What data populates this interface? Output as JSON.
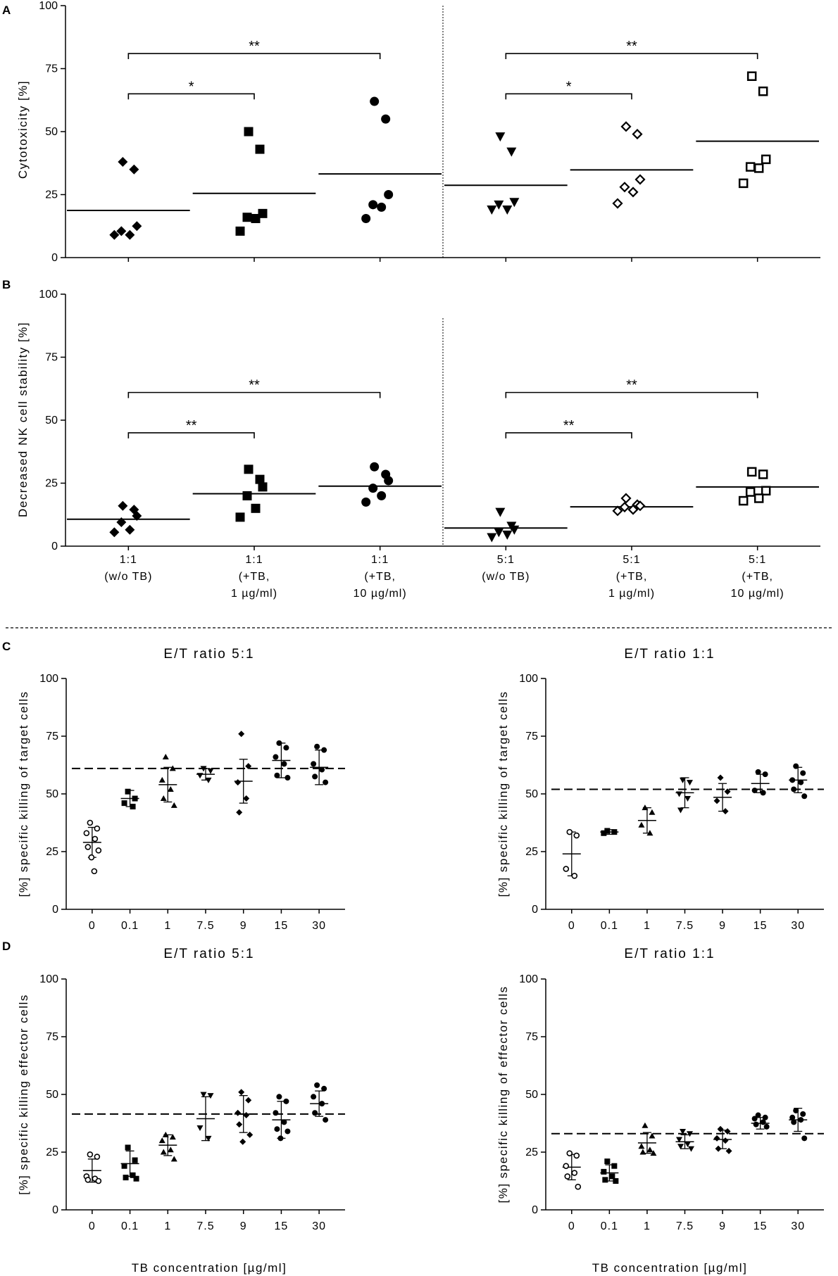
{
  "figure": {
    "separator": "dashed",
    "x_axis_title": "TB concentration [µg/ml]"
  },
  "chart_data": [
    {
      "id": "A",
      "panel_label": "A",
      "type": "scatter",
      "ylabel": "Cytotoxicity [%]",
      "ylim": [
        0,
        100
      ],
      "yticks": [
        "0",
        "25",
        "50",
        "75",
        "100"
      ],
      "show_x_labels": false,
      "divider_after_group": 3,
      "groups": [
        {
          "label": [
            "1:1",
            "(w/o TB)"
          ],
          "marker": "diamond",
          "points": [
            38,
            35,
            12.5,
            10.5,
            9,
            9
          ],
          "mean": 18.7
        },
        {
          "label": [
            "1:1",
            "(+TB,",
            "1 µg/ml)"
          ],
          "marker": "square",
          "points": [
            50,
            43,
            17.5,
            16,
            15.5,
            10.5
          ],
          "mean": 25.5
        },
        {
          "label": [
            "1:1",
            "(+TB,",
            "10 µg/ml)"
          ],
          "marker": "circle",
          "points": [
            62,
            55,
            25,
            21,
            20,
            15.5
          ],
          "mean": 33.2
        },
        {
          "label": [
            "5:1",
            "(w/o TB)"
          ],
          "marker": "triangle-down",
          "points": [
            48,
            42,
            22,
            21,
            19,
            19
          ],
          "mean": 28.7
        },
        {
          "label": [
            "5:1",
            "(+TB,",
            "1 µg/ml)"
          ],
          "marker": "diamond-open",
          "points": [
            52,
            49,
            31,
            28,
            26,
            21.5
          ],
          "mean": 34.8
        },
        {
          "label": [
            "5:1",
            "(+TB,",
            "10 µg/ml)"
          ],
          "marker": "square-open",
          "points": [
            72,
            66,
            39,
            36,
            35.5,
            29.5
          ],
          "mean": 46.2
        }
      ],
      "brackets": [
        {
          "from": 0,
          "to": 2,
          "level": 81,
          "text": "**"
        },
        {
          "from": 0,
          "to": 1,
          "level": 65,
          "text": "*"
        },
        {
          "from": 3,
          "to": 5,
          "level": 81,
          "text": "**"
        },
        {
          "from": 3,
          "to": 4,
          "level": 65,
          "text": "*"
        }
      ]
    },
    {
      "id": "B",
      "panel_label": "B",
      "type": "scatter",
      "ylabel": "Decreased NK cell stability [%]",
      "ylim": [
        0,
        100
      ],
      "yticks": [
        "0",
        "25",
        "50",
        "75",
        "100"
      ],
      "show_x_labels": true,
      "divider_after_group": 3,
      "groups": [
        {
          "label": [
            "1:1",
            "(w/o TB)"
          ],
          "marker": "diamond",
          "points": [
            16,
            14.5,
            12,
            9.5,
            6.5,
            5.5
          ],
          "mean": 10.7
        },
        {
          "label": [
            "1:1",
            "(+TB,",
            "1 µg/ml)"
          ],
          "marker": "square",
          "points": [
            30.5,
            26.5,
            23.5,
            20,
            15,
            11.5
          ],
          "mean": 20.8
        },
        {
          "label": [
            "1:1",
            "(+TB,",
            "10 µg/ml)"
          ],
          "marker": "circle",
          "points": [
            31.5,
            28.5,
            26,
            23,
            20,
            17.5
          ],
          "mean": 23.8
        },
        {
          "label": [
            "5:1",
            "(w/o TB)"
          ],
          "marker": "triangle-down",
          "points": [
            13.5,
            8,
            6.5,
            5.5,
            4.5,
            3.5
          ],
          "mean": 7.2
        },
        {
          "label": [
            "5:1",
            "(+TB,",
            "1 µg/ml)"
          ],
          "marker": "diamond-open",
          "points": [
            19,
            16.5,
            16,
            15.5,
            14.5,
            14
          ],
          "mean": 15.6
        },
        {
          "label": [
            "5:1",
            "(+TB,",
            "10 µg/ml)"
          ],
          "marker": "square-open",
          "points": [
            29.5,
            28.5,
            22,
            21.5,
            19,
            18
          ],
          "mean": 23.5
        }
      ],
      "brackets": [
        {
          "from": 0,
          "to": 2,
          "level": 61,
          "text": "**"
        },
        {
          "from": 0,
          "to": 1,
          "level": 45,
          "text": "**"
        },
        {
          "from": 3,
          "to": 5,
          "level": 61,
          "text": "**"
        },
        {
          "from": 3,
          "to": 4,
          "level": 45,
          "text": "**"
        }
      ]
    },
    {
      "id": "C1",
      "panel_label": "C",
      "type": "scatter",
      "title": "E/T ratio 5:1",
      "ylabel": "[%] specific killing of target cells",
      "ylim": [
        0,
        100
      ],
      "yticks": [
        "0",
        "25",
        "50",
        "75",
        "100"
      ],
      "reference_line": 61,
      "categories": [
        "0",
        "0.1",
        "1",
        "7.5",
        "9",
        "15",
        "30"
      ],
      "groups": [
        {
          "marker": "circle-open",
          "points": [
            37.5,
            35,
            33,
            30.5,
            27,
            25.5,
            22.5,
            16.5
          ],
          "mean": 29,
          "sd": 6.5
        },
        {
          "marker": "square",
          "points": [
            51,
            48,
            46,
            44.5
          ],
          "mean": 48,
          "sd": 3.5
        },
        {
          "marker": "triangle-up",
          "points": [
            66,
            61,
            56,
            52,
            48,
            45
          ],
          "mean": 54,
          "sd": 7.5
        },
        {
          "marker": "triangle-down",
          "points": [
            61,
            60,
            58,
            56
          ],
          "mean": 58.5,
          "sd": 2.5
        },
        {
          "marker": "diamond",
          "points": [
            76,
            62,
            55,
            48,
            42
          ],
          "mean": 55.5,
          "sd": 9.5
        },
        {
          "marker": "circle",
          "points": [
            72,
            70,
            66,
            63,
            58,
            57
          ],
          "mean": 64.5,
          "sd": 7.5
        },
        {
          "marker": "circle",
          "points": [
            70.5,
            69,
            63,
            60.5,
            57.5,
            55
          ],
          "mean": 61.5,
          "sd": 7.5
        }
      ]
    },
    {
      "id": "C2",
      "panel_label": "",
      "type": "scatter",
      "title": "E/T ratio 1:1",
      "ylabel": "[%] specific killing of target cells",
      "ylim": [
        0,
        100
      ],
      "yticks": [
        "0",
        "25",
        "50",
        "75",
        "100"
      ],
      "reference_line": 52,
      "categories": [
        "0",
        "0.1",
        "1",
        "7.5",
        "9",
        "15",
        "30"
      ],
      "groups": [
        {
          "marker": "circle-open",
          "points": [
            33.5,
            32,
            17.5,
            14.5
          ],
          "mean": 24,
          "sd": 9.5
        },
        {
          "marker": "square",
          "points": [
            34,
            33.5,
            33
          ],
          "mean": 33.5,
          "sd": 1
        },
        {
          "marker": "triangle-up",
          "points": [
            44,
            42,
            36.5,
            33
          ],
          "mean": 38.5,
          "sd": 5.5
        },
        {
          "marker": "triangle-down",
          "points": [
            56,
            55,
            50,
            48,
            43
          ],
          "mean": 50.5,
          "sd": 6.5
        },
        {
          "marker": "diamond",
          "points": [
            57,
            51,
            47,
            42.5
          ],
          "mean": 48.5,
          "sd": 6
        },
        {
          "marker": "circle",
          "points": [
            59.5,
            58.5,
            51.5,
            50.5
          ],
          "mean": 54.5,
          "sd": 4
        },
        {
          "marker": "circle",
          "points": [
            62,
            59,
            56,
            55,
            52,
            49
          ],
          "mean": 56,
          "sd": 5.5
        }
      ]
    },
    {
      "id": "D1",
      "panel_label": "D",
      "type": "scatter",
      "title": "E/T ratio 5:1",
      "ylabel": "[%] specific killing effector cells",
      "xlabel": "TB concentration [µg/ml]",
      "ylim": [
        0,
        100
      ],
      "yticks": [
        "0",
        "25",
        "50",
        "75",
        "100"
      ],
      "reference_line": 41.5,
      "categories": [
        "0",
        "0.1",
        "1",
        "7.5",
        "9",
        "15",
        "30"
      ],
      "groups": [
        {
          "marker": "circle-open",
          "points": [
            24,
            23,
            14.5,
            13.5,
            13,
            12.5
          ],
          "mean": 17,
          "sd": 5
        },
        {
          "marker": "square",
          "points": [
            27,
            21.5,
            19,
            15,
            14,
            13.5
          ],
          "mean": 20,
          "sd": 5.5
        },
        {
          "marker": "triangle-up",
          "points": [
            32.5,
            31.5,
            30,
            26,
            25,
            22
          ],
          "mean": 28,
          "sd": 4.5
        },
        {
          "marker": "triangle-down",
          "points": [
            50,
            49.5,
            35.5,
            31
          ],
          "mean": 39.5,
          "sd": 9.5
        },
        {
          "marker": "diamond",
          "points": [
            51,
            47.5,
            42,
            41,
            37,
            32.5,
            29.5
          ],
          "mean": 41.5,
          "sd": 8
        },
        {
          "marker": "circle",
          "points": [
            49,
            47,
            42,
            38,
            35,
            34,
            31
          ],
          "mean": 39,
          "sd": 8
        },
        {
          "marker": "circle",
          "points": [
            54,
            52.5,
            49,
            46,
            42,
            39
          ],
          "mean": 46,
          "sd": 5.5
        }
      ]
    },
    {
      "id": "D2",
      "panel_label": "",
      "type": "scatter",
      "title": "E/T ratio 1:1",
      "ylabel": "[%] specific killing of effector cells",
      "xlabel": "TB concentration [µg/ml]",
      "ylim": [
        0,
        100
      ],
      "yticks": [
        "0",
        "25",
        "50",
        "75",
        "100"
      ],
      "reference_line": 33,
      "categories": [
        "0",
        "0.1",
        "1",
        "7.5",
        "9",
        "15",
        "30"
      ],
      "groups": [
        {
          "marker": "circle-open",
          "points": [
            24.5,
            23.5,
            19,
            16,
            14.5,
            10
          ],
          "mean": 18.5,
          "sd": 5.5
        },
        {
          "marker": "square",
          "points": [
            21,
            19,
            16.5,
            14.5,
            13,
            12.5
          ],
          "mean": 16,
          "sd": 3.5
        },
        {
          "marker": "triangle-up",
          "points": [
            36.5,
            32,
            27.5,
            26,
            25,
            24.5
          ],
          "mean": 29,
          "sd": 4.5
        },
        {
          "marker": "triangle-down",
          "points": [
            34,
            33,
            30.5,
            28.5,
            27.5,
            26.5
          ],
          "mean": 29.5,
          "sd": 3
        },
        {
          "marker": "diamond",
          "points": [
            35,
            34,
            31,
            30,
            26.5,
            25.5
          ],
          "mean": 30.5,
          "sd": 4
        },
        {
          "marker": "circle",
          "points": [
            41,
            40,
            39.5,
            38,
            37,
            36
          ],
          "mean": 37.5,
          "sd": 2.5
        },
        {
          "marker": "circle",
          "points": [
            43,
            41.5,
            40,
            39,
            38,
            31
          ],
          "mean": 39,
          "sd": 5
        }
      ]
    }
  ]
}
